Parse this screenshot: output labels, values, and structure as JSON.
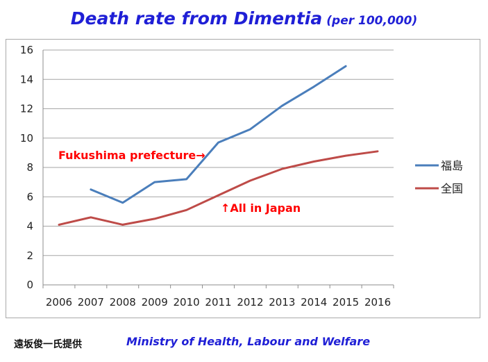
{
  "title": {
    "main": "Death rate from Dimentia",
    "sub": "(per 100,000)"
  },
  "chart_data": {
    "type": "line",
    "x": [
      2006,
      2007,
      2008,
      2009,
      2010,
      2011,
      2012,
      2013,
      2014,
      2015,
      2016
    ],
    "ylim": [
      0,
      16
    ],
    "yticks": [
      0,
      2,
      4,
      6,
      8,
      10,
      12,
      14,
      16
    ],
    "grid": true,
    "legend_position": "right",
    "series": [
      {
        "name": "福島",
        "color": "#4a7ebb",
        "values": [
          null,
          6.5,
          5.6,
          7.0,
          7.2,
          9.7,
          10.6,
          12.2,
          13.5,
          14.9,
          null
        ]
      },
      {
        "name": "全国",
        "color": "#be4b48",
        "values": [
          4.1,
          4.6,
          4.1,
          4.5,
          5.1,
          6.1,
          7.1,
          7.9,
          8.4,
          8.8,
          9.1
        ]
      }
    ],
    "annotations": [
      {
        "text": "Fukushima prefecture→",
        "color": "#ff0000"
      },
      {
        "text": "↑All in Japan",
        "color": "#ff0000"
      }
    ]
  },
  "footer": {
    "credit_jp": "遠坂俊一氏提供",
    "credit_en": "Ministry of Health, Labour and Welfare"
  }
}
